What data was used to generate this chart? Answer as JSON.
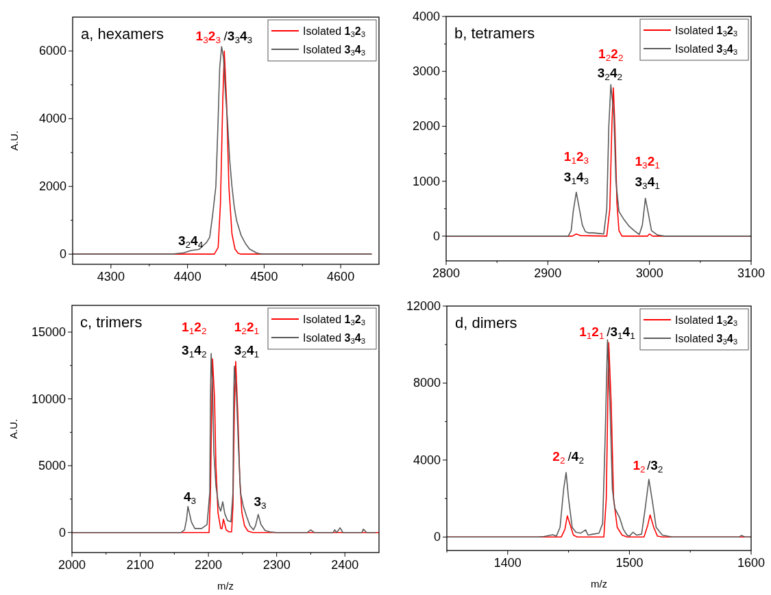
{
  "chart_data": [
    {
      "type": "line",
      "title": "a, hexamers",
      "ylabel": "A.U.",
      "xlim": [
        4250,
        4650
      ],
      "ylim": [
        -300,
        7000
      ],
      "legend": "top right",
      "xticks": [
        4300,
        {
          "value": 4350,
          "label": null
        },
        4400,
        {
          "value": 4450,
          "label": null
        },
        4500,
        {
          "value": 4550,
          "label": null
        },
        4600
      ],
      "yticks": [
        0,
        {
          "value": 1000,
          "label": null
        },
        2000,
        {
          "value": 3000,
          "label": null
        },
        4000,
        {
          "value": 5000,
          "label": null
        },
        6000
      ],
      "annotations": [
        "1$_{3}$2$_{3}$",
        "/3$_{3}$4$_{3}$",
        "3$_{2}$4$_{4}$"
      ],
      "series": [
        {
          "name": "Isolated 1$_{3}$2$_{3}$",
          "color": "#ff0000",
          "x": [
            4250,
            4435,
            4440,
            4443,
            4446,
            4448,
            4451,
            4454,
            4458,
            4462,
            4466,
            4470,
            4640
          ],
          "values": [
            0,
            0,
            200,
            1500,
            4500,
            6000,
            4500,
            2000,
            600,
            150,
            30,
            0,
            0
          ]
        },
        {
          "name": "Isolated 3$_{3}$4$_{3}$",
          "color": "#5a5a5a",
          "x": [
            4250,
            4380,
            4395,
            4405,
            4415,
            4425,
            4429,
            4433,
            4437,
            4440,
            4442,
            4444.5,
            4447,
            4450,
            4452,
            4455,
            4458,
            4461,
            4464,
            4470,
            4476,
            4481,
            4485,
            4490,
            4495,
            4500,
            4640
          ],
          "values": [
            0,
            0,
            40,
            110,
            140,
            350,
            500,
            1200,
            2000,
            4000,
            5500,
            6130,
            5800,
            4600,
            4000,
            2800,
            2000,
            1400,
            1000,
            550,
            300,
            150,
            100,
            40,
            10,
            0,
            0
          ]
        }
      ]
    },
    {
      "type": "line",
      "title": "b, tetramers",
      "xlim": [
        2800,
        3100
      ],
      "ylim": [
        -450,
        4000
      ],
      "legend": "top right",
      "xticks": [
        2800,
        {
          "value": 2850,
          "label": null
        },
        2900,
        {
          "value": 2950,
          "label": null
        },
        3000,
        {
          "value": 3050,
          "label": null
        },
        3100
      ],
      "yticks": [
        0,
        {
          "value": 500,
          "label": null
        },
        1000,
        {
          "value": 1500,
          "label": null
        },
        2000,
        {
          "value": 2500,
          "label": null
        },
        3000,
        {
          "value": 3500,
          "label": null
        },
        4000
      ],
      "annotations": [
        "1$_{2}$2$_{2}$",
        "3$_{2}$4$_{2}$",
        "1$_{1}$2$_{3}$",
        "3$_{1}$4$_{3}$",
        "1$_{3}$2$_{1}$",
        "3$_{3}$4$_{1}$"
      ],
      "series": [
        {
          "name": "Isolated 1$_{3}$2$_{3}$",
          "color": "#ff0000",
          "x": [
            2800,
            2924,
            2928,
            2932,
            2958,
            2961,
            2963,
            2964.5,
            2966,
            2968,
            2970,
            2973,
            2998,
            3000,
            3003,
            3100
          ],
          "values": [
            0,
            0,
            40,
            10,
            0,
            500,
            2000,
            2700,
            2000,
            600,
            100,
            0,
            0,
            40,
            0,
            0
          ]
        },
        {
          "name": "Isolated 3$_{3}$4$_{3}$",
          "color": "#5a5a5a",
          "x": [
            2800,
            2920,
            2923,
            2925,
            2928,
            2931,
            2934,
            2937,
            2940,
            2945,
            2950,
            2955,
            2958,
            2960,
            2962,
            2965,
            2967,
            2970,
            2975,
            2980,
            2985,
            2990,
            2993,
            2996,
            2999,
            3002,
            3008,
            3015,
            3100
          ],
          "values": [
            0,
            0,
            100,
            450,
            800,
            500,
            200,
            80,
            60,
            60,
            50,
            40,
            500,
            2000,
            2760,
            2200,
            1000,
            450,
            300,
            180,
            100,
            30,
            200,
            690,
            400,
            100,
            20,
            0,
            0
          ]
        }
      ]
    },
    {
      "type": "line",
      "title": "c, trimers",
      "xlabel": "m/z",
      "ylabel": "A.U.",
      "xlim": [
        2000,
        2450
      ],
      "ylim": [
        -1500,
        17000
      ],
      "legend": "top right",
      "xticks": [
        2000,
        {
          "value": 2050,
          "label": null
        },
        2100,
        {
          "value": 2150,
          "label": null
        },
        2200,
        {
          "value": 2250,
          "label": null
        },
        2300,
        {
          "value": 2350,
          "label": null
        },
        2400
      ],
      "yticks": [
        0,
        {
          "value": 2500,
          "label": null
        },
        5000,
        {
          "value": 7500,
          "label": null
        },
        10000,
        {
          "value": 12500,
          "label": null
        },
        15000
      ],
      "annotations": [
        "1$_{1}$2$_{2}$",
        "3$_{1}$4$_{2}$",
        "1$_{2}$2$_{1}$",
        "3$_{2}$4$_{1}$",
        "4$_{3}$",
        "3$_{3}$"
      ],
      "series": [
        {
          "name": "Isolated 1$_{3}$2$_{3}$",
          "color": "#ff0000",
          "x": [
            2000,
            2201,
            2203,
            2205,
            2206,
            2209,
            2211,
            2214,
            2218,
            2220,
            2222,
            2226,
            2230,
            2234,
            2236,
            2238,
            2240,
            2243,
            2246,
            2249,
            2253,
            2258,
            2265,
            2450
          ],
          "values": [
            0,
            0,
            3000,
            10000,
            13000,
            10000,
            5000,
            1500,
            300,
            300,
            1000,
            200,
            50,
            50,
            2000,
            9000,
            12800,
            9000,
            4000,
            1500,
            500,
            100,
            0,
            0
          ]
        },
        {
          "name": "Isolated 3$_{3}$4$_{3}$",
          "color": "#5a5a5a",
          "x": [
            2000,
            2160,
            2165,
            2168,
            2170,
            2175,
            2180,
            2190,
            2198,
            2202,
            2203,
            2204,
            2206,
            2208,
            2211,
            2215,
            2218,
            2221,
            2224,
            2228,
            2233,
            2236,
            2237,
            2238,
            2241,
            2244,
            2247,
            2251,
            2256,
            2261,
            2266,
            2269,
            2273,
            2277,
            2283,
            2290,
            2300,
            2345,
            2350,
            2355,
            2383,
            2385,
            2388,
            2393,
            2397,
            2425,
            2427,
            2432,
            2445
          ],
          "values": [
            0,
            0,
            200,
            1000,
            1950,
            800,
            300,
            300,
            600,
            3000,
            10000,
            13400,
            11000,
            6000,
            3500,
            2000,
            1600,
            2300,
            1400,
            900,
            800,
            3000,
            10000,
            12450,
            10500,
            6500,
            3000,
            2000,
            1200,
            500,
            200,
            500,
            1350,
            600,
            150,
            50,
            0,
            0,
            200,
            0,
            0,
            200,
            0,
            350,
            0,
            0,
            250,
            0,
            0
          ]
        }
      ]
    },
    {
      "type": "line",
      "title": "d, dimers",
      "xlabel": "m/z",
      "xlim": [
        1350,
        1600
      ],
      "ylim": [
        -700,
        12000
      ],
      "legend": "top right",
      "xticks": [
        {
          "value": 1350,
          "label": null
        },
        1400,
        {
          "value": 1450,
          "label": null
        },
        1500,
        {
          "value": 1550,
          "label": null
        },
        1600
      ],
      "yticks": [
        0,
        {
          "value": 2000,
          "label": null
        },
        4000,
        {
          "value": 6000,
          "label": null
        },
        8000,
        {
          "value": 10000,
          "label": null
        },
        12000
      ],
      "annotations": [
        "1$_{1}$2$_{1}$",
        "/3$_{1}$4$_{1}$",
        "2$_{2}$",
        "/4$_{2}$",
        "1$_{2}$",
        "/3$_{2}$"
      ],
      "series": [
        {
          "name": "Isolated 1$_{3}$2$_{3}$",
          "color": "#ff0000",
          "x": [
            1350,
            1444,
            1447,
            1449,
            1451,
            1454,
            1457,
            1479,
            1481,
            1483,
            1485,
            1487,
            1490,
            1494,
            1498,
            1512,
            1515,
            1517,
            1520,
            1523,
            1527,
            1600
          ],
          "values": [
            0,
            0,
            400,
            1100,
            700,
            100,
            0,
            0,
            2000,
            10100,
            7000,
            2000,
            500,
            100,
            0,
            0,
            600,
            1150,
            500,
            50,
            0,
            0
          ]
        },
        {
          "name": "Isolated 3$_{3}$4$_{3}$",
          "color": "#5a5a5a",
          "x": [
            1350,
            1425,
            1430,
            1437,
            1440,
            1443,
            1446,
            1448,
            1450,
            1453,
            1456,
            1460,
            1464,
            1466,
            1470,
            1475,
            1478,
            1480,
            1482,
            1484,
            1486,
            1488,
            1492,
            1495,
            1498,
            1500,
            1503,
            1506,
            1510,
            1513,
            1516,
            1519,
            1522,
            1527,
            1535,
            1590,
            1592,
            1595,
            1600
          ],
          "values": [
            0,
            0,
            30,
            120,
            50,
            500,
            2500,
            3350,
            2000,
            500,
            250,
            200,
            370,
            100,
            150,
            200,
            700,
            5000,
            10250,
            7000,
            2500,
            1500,
            1000,
            400,
            100,
            50,
            250,
            100,
            150,
            1500,
            3000,
            1800,
            500,
            100,
            0,
            0,
            80,
            0,
            0
          ]
        }
      ]
    }
  ]
}
